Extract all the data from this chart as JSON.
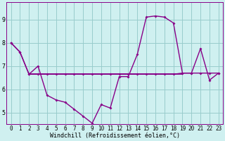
{
  "xlabel": "Windchill (Refroidissement éolien,°C)",
  "bg_color": "#cff0f0",
  "line_color": "#880088",
  "grid_color": "#99cccc",
  "xlim": [
    -0.5,
    23.5
  ],
  "ylim": [
    4.5,
    9.75
  ],
  "yticks": [
    5,
    6,
    7,
    8,
    9
  ],
  "xticks": [
    0,
    1,
    2,
    3,
    4,
    5,
    6,
    7,
    8,
    9,
    10,
    11,
    12,
    13,
    14,
    15,
    16,
    17,
    18,
    19,
    20,
    21,
    22,
    23
  ],
  "line1_x": [
    0,
    1,
    2,
    3,
    4,
    5,
    6,
    7,
    8,
    9,
    10,
    11,
    12,
    13,
    14,
    15,
    16,
    17,
    18,
    19,
    20,
    21,
    22,
    23
  ],
  "line1_y": [
    8.0,
    7.6,
    6.65,
    7.0,
    5.75,
    5.55,
    5.45,
    5.15,
    4.85,
    4.55,
    5.35,
    5.2,
    6.55,
    6.55,
    7.5,
    9.1,
    9.15,
    9.1,
    8.85,
    6.7,
    6.7,
    7.75,
    6.4,
    6.7
  ],
  "line2_x": [
    0,
    1,
    2,
    3,
    4,
    5,
    6,
    7,
    8,
    9,
    10,
    11,
    12,
    13,
    14,
    15,
    16,
    17,
    18,
    19,
    20,
    21,
    22,
    23
  ],
  "line2_y": [
    8.0,
    7.6,
    6.65,
    6.65,
    6.65,
    6.65,
    6.65,
    6.65,
    6.65,
    6.65,
    6.65,
    6.65,
    6.65,
    6.65,
    6.65,
    6.65,
    6.65,
    6.65,
    6.65,
    6.7,
    6.7,
    6.7,
    6.7,
    6.7
  ],
  "hline_y": 6.65,
  "hline_x_start": 2.0,
  "hline_x_end": 19.0,
  "xlabel_fontsize": 6,
  "tick_fontsize": 5.5
}
